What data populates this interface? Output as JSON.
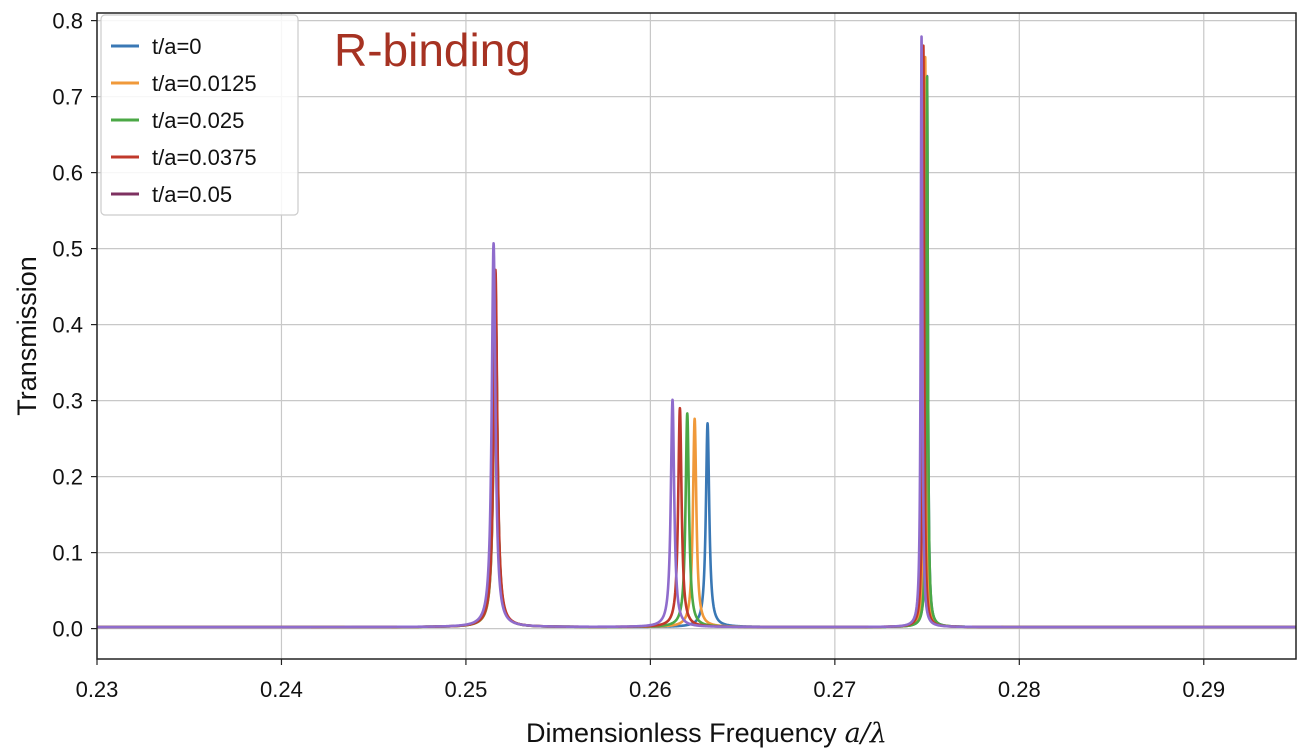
{
  "chart_data": {
    "type": "line",
    "title": "",
    "annotation": {
      "text": "R-binding",
      "color": "#a63222"
    },
    "xlabel": "Dimensionless Frequency",
    "xlabel_math": "a/λ",
    "ylabel": "Transmission",
    "xlim": [
      0.23,
      0.295
    ],
    "ylim": [
      -0.04,
      0.81
    ],
    "xticks": [
      0.23,
      0.24,
      0.25,
      0.26,
      0.27,
      0.28,
      0.29
    ],
    "xtick_labels": [
      "0.23",
      "0.24",
      "0.25",
      "0.26",
      "0.27",
      "0.28",
      "0.29"
    ],
    "yticks": [
      0.0,
      0.1,
      0.2,
      0.3,
      0.4,
      0.5,
      0.6,
      0.7,
      0.8
    ],
    "ytick_labels": [
      "0.0",
      "0.1",
      "0.2",
      "0.3",
      "0.4",
      "0.5",
      "0.6",
      "0.7",
      "0.8"
    ],
    "grid": true,
    "legend_position": "top-left",
    "series": [
      {
        "name": "t/a=0",
        "color": "#3a78b5",
        "peaks": [
          {
            "x": 0.2516,
            "y": 0.44,
            "gamma": 0.00012
          },
          {
            "x": 0.2631,
            "y": 0.268,
            "gamma": 0.00011
          },
          {
            "x": 0.275,
            "y": 0.725,
            "gamma": 5e-05
          }
        ]
      },
      {
        "name": "t/a=0.0125",
        "color": "#f0993a",
        "peaks": [
          {
            "x": 0.2516,
            "y": 0.43,
            "gamma": 0.00012
          },
          {
            "x": 0.2624,
            "y": 0.274,
            "gamma": 0.00011
          },
          {
            "x": 0.2749,
            "y": 0.75,
            "gamma": 5e-05
          }
        ]
      },
      {
        "name": "t/a=0.025",
        "color": "#4ba846",
        "peaks": [
          {
            "x": 0.2516,
            "y": 0.45,
            "gamma": 0.00012
          },
          {
            "x": 0.262,
            "y": 0.281,
            "gamma": 0.00011
          },
          {
            "x": 0.275,
            "y": 0.724,
            "gamma": 5e-05
          }
        ]
      },
      {
        "name": "t/a=0.0375",
        "color": "#c0392b",
        "peaks": [
          {
            "x": 0.2516,
            "y": 0.47,
            "gamma": 0.00012
          },
          {
            "x": 0.2616,
            "y": 0.288,
            "gamma": 0.00011
          },
          {
            "x": 0.2748,
            "y": 0.765,
            "gamma": 5e-05
          }
        ]
      },
      {
        "name": "t/a=0.05",
        "color": "#8f6ccc",
        "legend_color": "#7e3160",
        "peaks": [
          {
            "x": 0.2515,
            "y": 0.505,
            "gamma": 0.00012
          },
          {
            "x": 0.2612,
            "y": 0.299,
            "gamma": 0.00011
          },
          {
            "x": 0.2747,
            "y": 0.777,
            "gamma": 5e-05
          }
        ]
      }
    ]
  }
}
